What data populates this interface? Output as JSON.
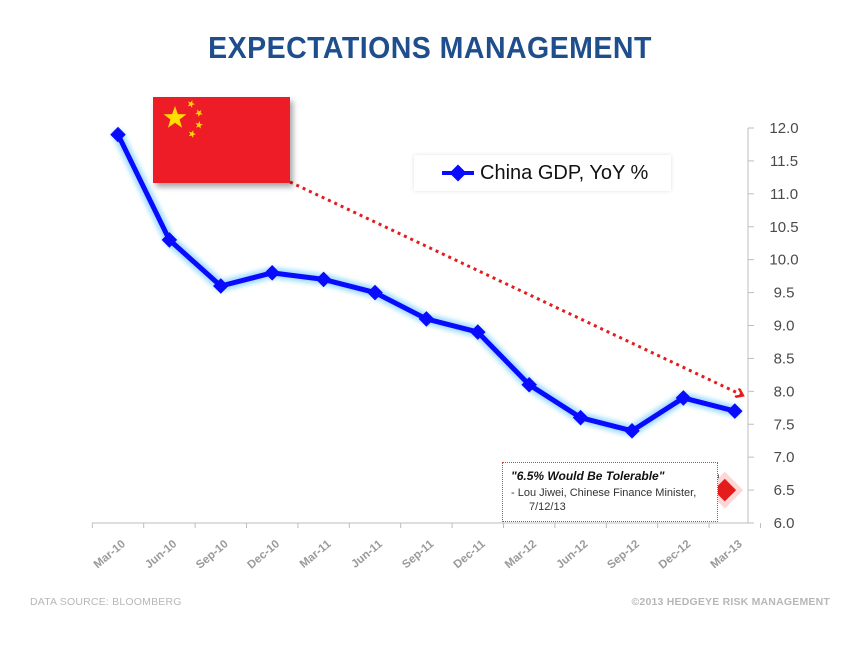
{
  "title": "EXPECTATIONS MANAGEMENT",
  "source_note": "DATA SOURCE: BLOOMBERG",
  "copyright_note": "©2013 HEDGEYE RISK MANAGEMENT",
  "flag_icon": "china-flag-icon",
  "colors": {
    "title": "#1f4e8c",
    "series_line": "#0a0aff",
    "series_glow": "#9fdcff",
    "arrow": "#e41c1c",
    "target_marker": "#e41c1c",
    "flag_red": "#ee1c25",
    "flag_star": "#ffde00"
  },
  "quote": {
    "title": "\"6.5% Would Be Tolerable\"",
    "attribution": "- Lou Jiwei, Chinese Finance Minister,",
    "date": "7/12/13"
  },
  "chart_data": {
    "type": "line",
    "categories": [
      "Mar-10",
      "Jun-10",
      "Sep-10",
      "Dec-10",
      "Mar-11",
      "Jun-11",
      "Sep-11",
      "Dec-11",
      "Mar-12",
      "Jun-12",
      "Sep-12",
      "Dec-12",
      "Mar-13"
    ],
    "series": [
      {
        "name": "China GDP, YoY %",
        "values": [
          11.9,
          10.3,
          9.6,
          9.8,
          9.7,
          9.5,
          9.1,
          8.9,
          8.1,
          7.6,
          7.4,
          7.9,
          7.7
        ]
      }
    ],
    "target_marker": {
      "category": "Mar-13",
      "value": 6.5
    },
    "y_axis_position": "right",
    "ylim": [
      6.0,
      12.0
    ],
    "y_ticks": [
      "6.0",
      "6.5",
      "7.0",
      "7.5",
      "8.0",
      "8.5",
      "9.0",
      "9.5",
      "10.0",
      "10.5",
      "11.0",
      "11.5",
      "12.0"
    ],
    "grid": false,
    "legend_position": "top-right"
  }
}
